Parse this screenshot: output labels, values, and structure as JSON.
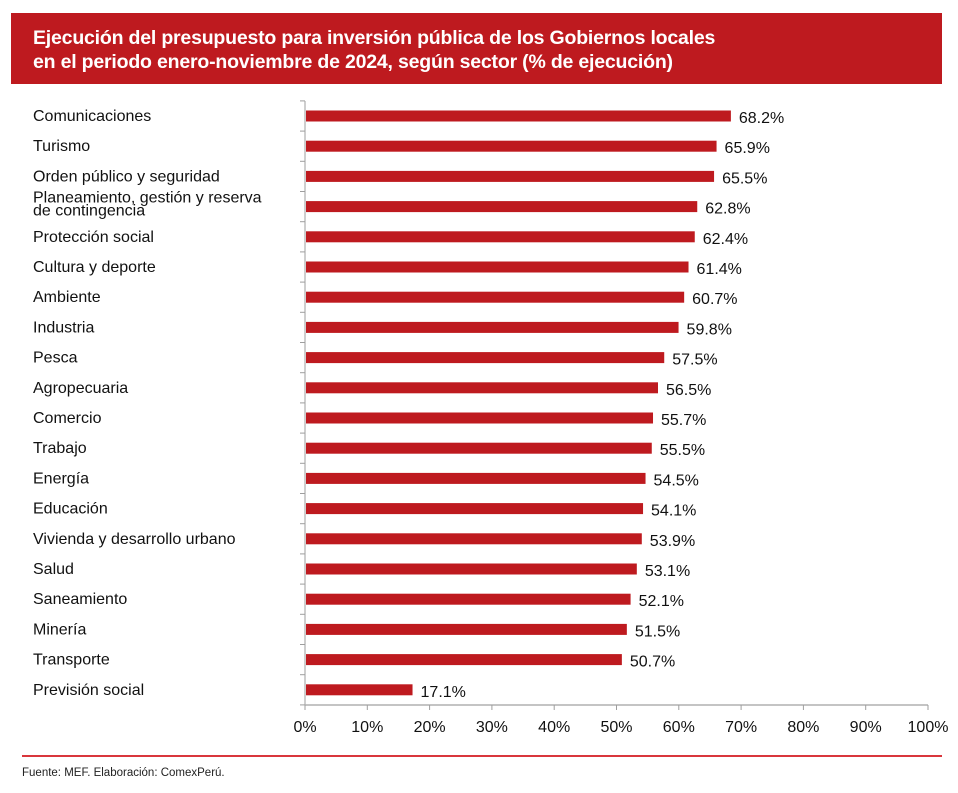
{
  "header": {
    "title_line1": "Ejecución del presupuesto para inversión pública de los Gobiernos locales",
    "title_line2": "en el periodo enero-noviembre de 2024, según sector (% de ejecución)",
    "background_color": "#be1a1f"
  },
  "footer": {
    "source": "Fuente: MEF. Elaboración: ComexPerú."
  },
  "chart_data": {
    "type": "bar",
    "orientation": "horizontal",
    "title": "Ejecución del presupuesto para inversión pública de los Gobiernos locales en el periodo enero-noviembre de 2024, según sector (% de ejecución)",
    "xlabel": "",
    "ylabel": "",
    "xlim": [
      0,
      100
    ],
    "x_ticks": [
      0,
      10,
      20,
      30,
      40,
      50,
      60,
      70,
      80,
      90,
      100
    ],
    "x_tick_labels": [
      "0%",
      "10%",
      "20%",
      "30%",
      "40%",
      "50%",
      "60%",
      "70%",
      "80%",
      "90%",
      "100%"
    ],
    "grid": false,
    "legend": "none",
    "bar_color": "#be1a1f",
    "categories": [
      [
        "Comunicaciones"
      ],
      [
        "Turismo"
      ],
      [
        "Orden público y seguridad"
      ],
      [
        "Planeamiento, gestión y reserva",
        "de contingencia"
      ],
      [
        "Protección social"
      ],
      [
        "Cultura y deporte"
      ],
      [
        "Ambiente"
      ],
      [
        "Industria"
      ],
      [
        "Pesca"
      ],
      [
        "Agropecuaria"
      ],
      [
        "Comercio"
      ],
      [
        "Trabajo"
      ],
      [
        "Energía"
      ],
      [
        "Educación"
      ],
      [
        "Vivienda y desarrollo urbano"
      ],
      [
        "Salud"
      ],
      [
        "Saneamiento"
      ],
      [
        "Minería"
      ],
      [
        "Transporte"
      ],
      [
        "Previsión social"
      ]
    ],
    "values": [
      68.2,
      65.9,
      65.5,
      62.8,
      62.4,
      61.4,
      60.7,
      59.8,
      57.5,
      56.5,
      55.7,
      55.5,
      54.5,
      54.1,
      53.9,
      53.1,
      52.1,
      51.5,
      50.7,
      17.1
    ],
    "data_labels": [
      "68.2%",
      "65.9%",
      "65.5%",
      "62.8%",
      "62.4%",
      "61.4%",
      "60.7%",
      "59.8%",
      "57.5%",
      "56.5%",
      "55.7%",
      "55.5%",
      "54.5%",
      "54.1%",
      "53.9%",
      "53.1%",
      "52.1%",
      "51.5%",
      "50.7%",
      "17.1%"
    ]
  }
}
